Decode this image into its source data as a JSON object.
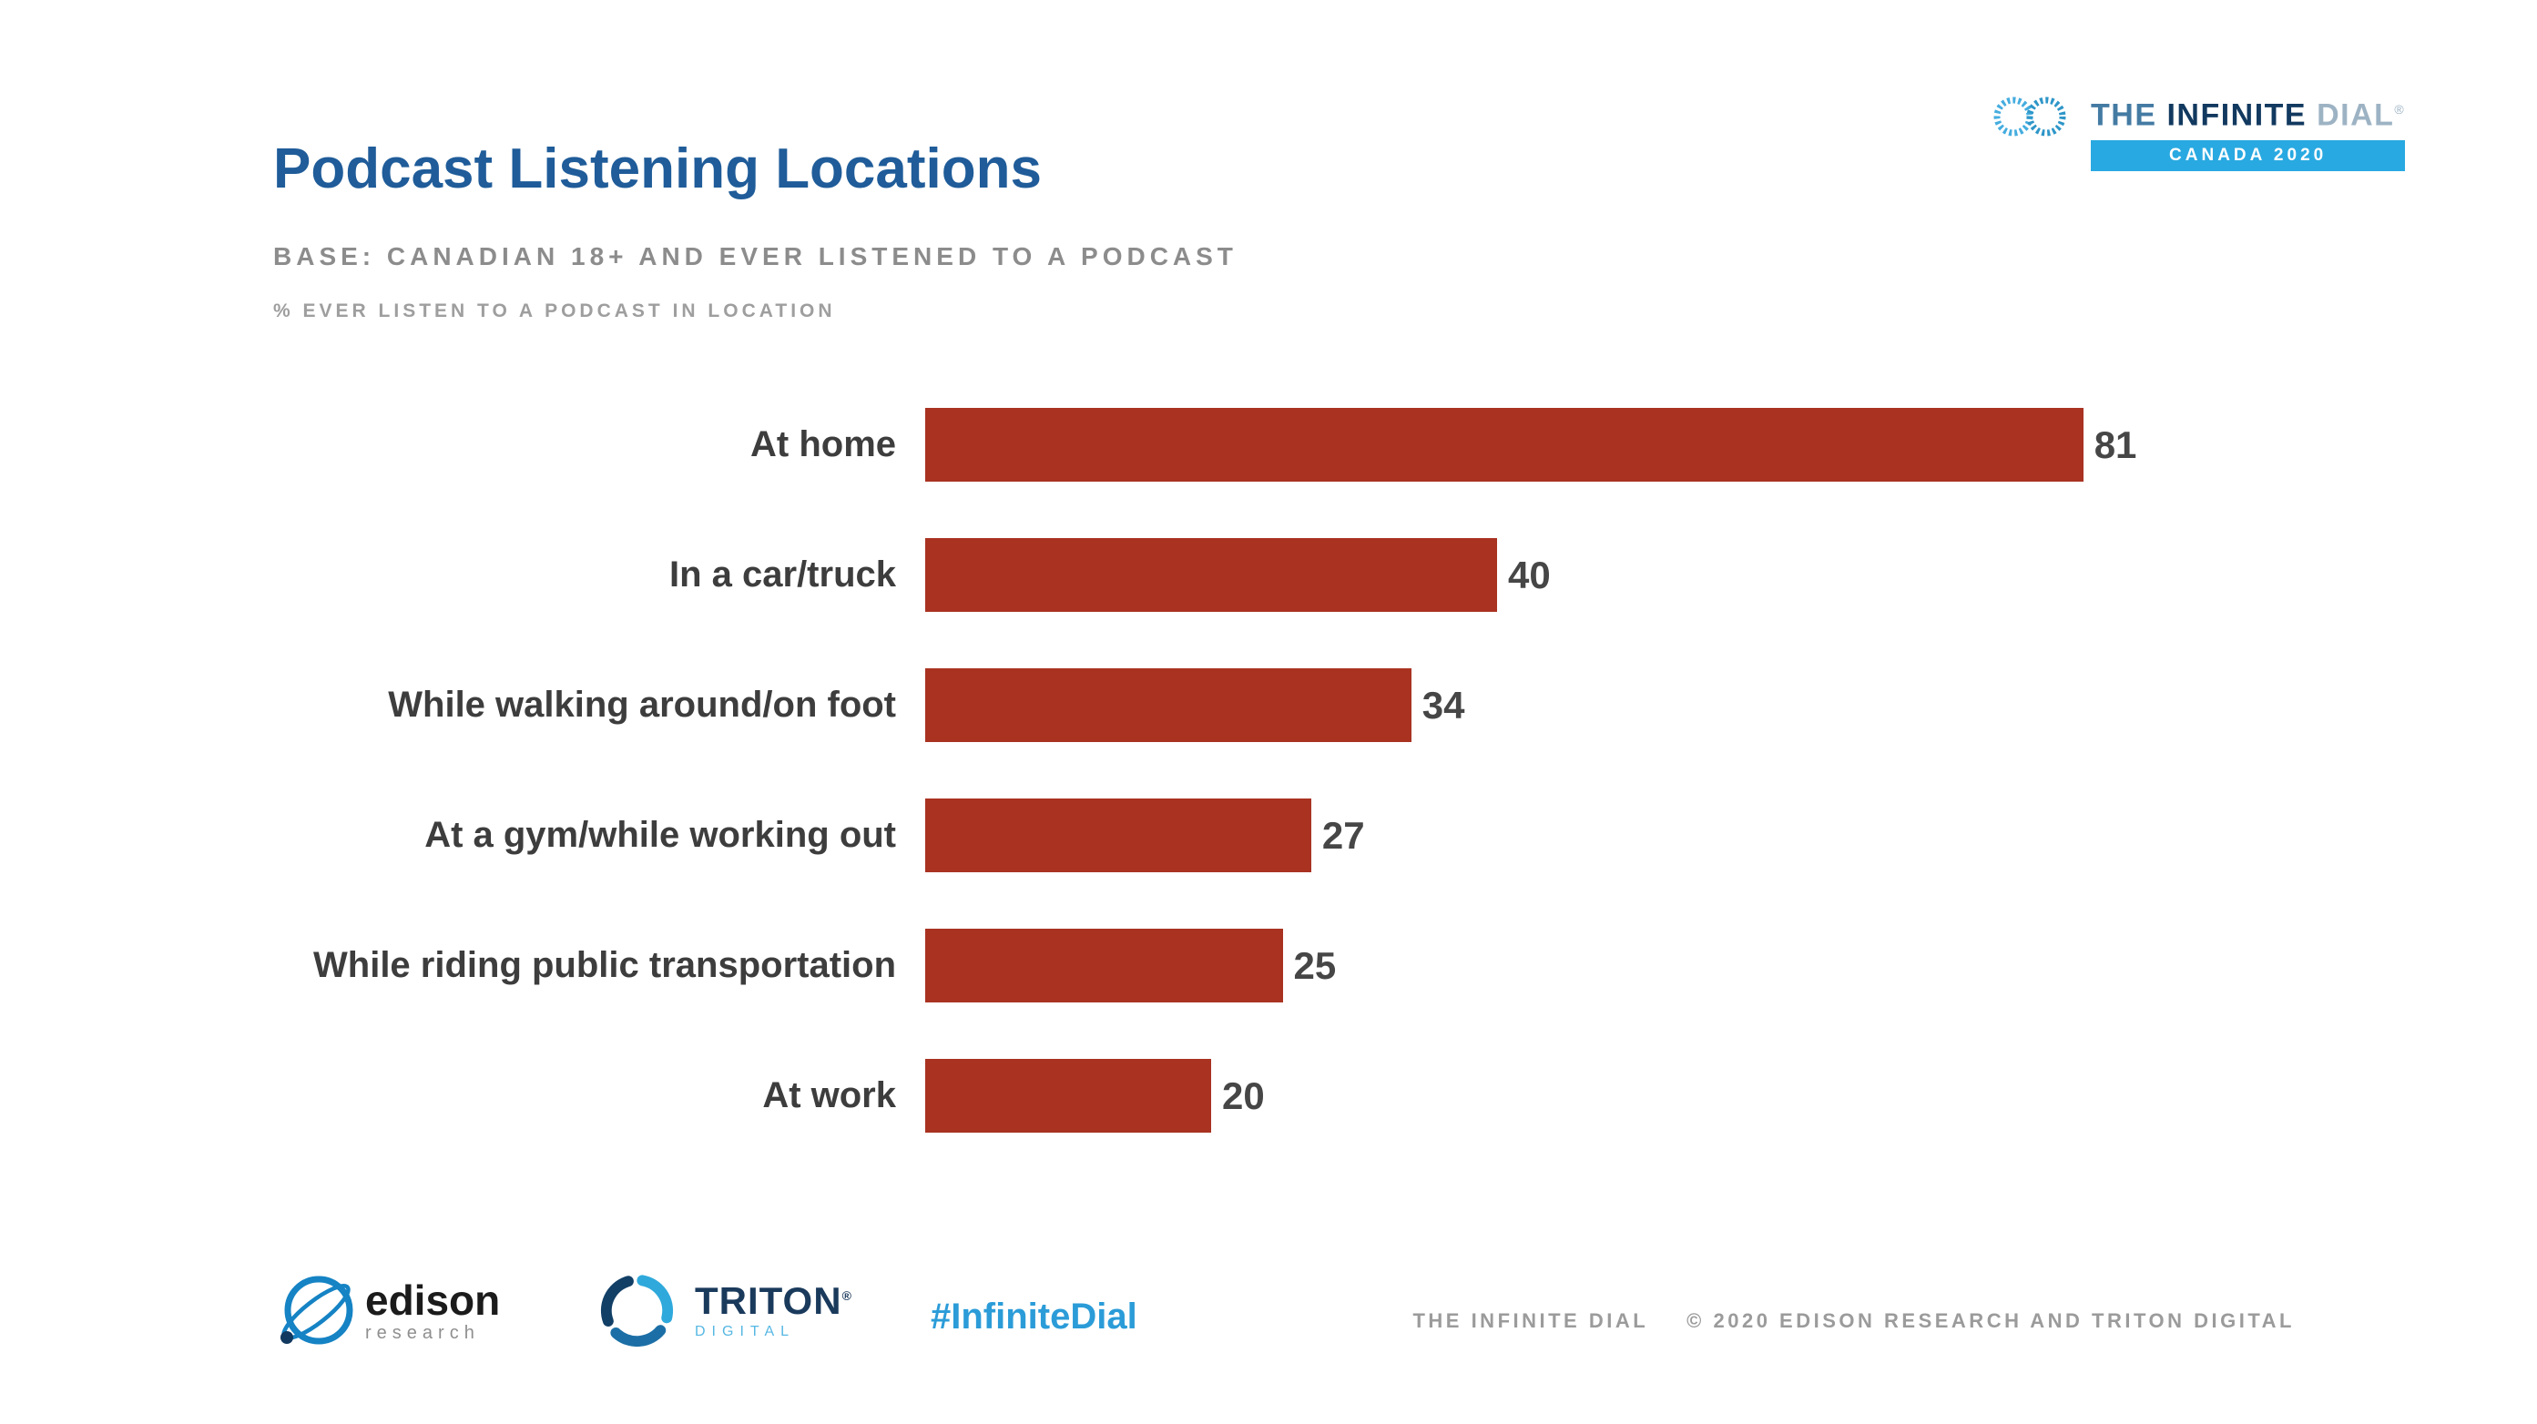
{
  "colors": {
    "title_blue": "#1F5C99",
    "bar_red": "#A93221",
    "banner_blue": "#29A9E1",
    "hashtag_blue": "#2B9CD8",
    "label_gray": "#3D3D3D"
  },
  "header": {
    "title": "Podcast Listening Locations",
    "base_line": "BASE: CANADIAN 18+ AND EVER LISTENED TO A PODCAST",
    "metric_line": "% EVER LISTEN TO A PODCAST IN LOCATION"
  },
  "brand": {
    "word_the": "THE",
    "word_infinite": "INFINITE",
    "word_dial": "DIAL",
    "registered_mark": "®",
    "banner_label": "CANADA 2020"
  },
  "chart_data": {
    "type": "bar",
    "orientation": "horizontal",
    "title": "Podcast Listening Locations",
    "subtitle": "BASE: CANADIAN 18+ AND EVER LISTENED TO A PODCAST",
    "note": "% EVER LISTEN TO A PODCAST IN LOCATION",
    "categories": [
      "At home",
      "In a car/truck",
      "While walking around/on foot",
      "At a gym/while working out",
      "While riding public transportation",
      "At work"
    ],
    "values": [
      81,
      40,
      34,
      27,
      25,
      20
    ],
    "bar_color": "#A93221",
    "data_labels": true,
    "grid": false,
    "legend": false,
    "xlabel": "",
    "ylabel": ""
  },
  "footer": {
    "edison_name": "edison",
    "edison_sub": "research",
    "triton_name": "TRITON",
    "triton_reg": "®",
    "triton_sub": "DIGITAL",
    "hashtag": "#InfiniteDial",
    "copyright_brand": "THE INFINITE DIAL",
    "copyright_text": "© 2020 EDISON RESEARCH AND TRITON DIGITAL"
  }
}
